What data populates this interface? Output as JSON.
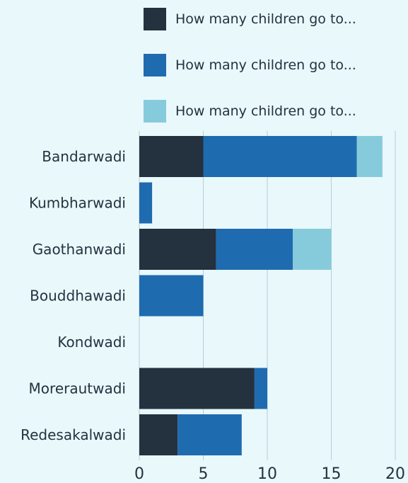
{
  "chart_data": {
    "type": "bar",
    "orientation": "horizontal",
    "stacked": true,
    "categories": [
      "Bandarwadi",
      "Kumbharwadi",
      "Gaothanwadi",
      "Bouddhawadi",
      "Kondwadi",
      "Morerautwadi",
      "Redesakalwadi"
    ],
    "series": [
      {
        "name": "How many children go to...",
        "color": "#24323f",
        "values": [
          5,
          0,
          6,
          0,
          0,
          9,
          3
        ]
      },
      {
        "name": "How many children go to...",
        "color": "#1f6bb0",
        "values": [
          12,
          1,
          6,
          5,
          0,
          1,
          5
        ]
      },
      {
        "name": "How many children go to...",
        "color": "#86cbdb",
        "values": [
          2,
          0,
          3,
          0,
          0,
          0,
          0
        ]
      }
    ],
    "xlim": [
      0,
      20
    ],
    "x_ticks": [
      "0",
      "5",
      "10",
      "15",
      "20"
    ],
    "grid": true,
    "legend_position": "top",
    "title": "",
    "xlabel": "",
    "ylabel": ""
  },
  "colors": {
    "background": "#e9f8fb",
    "grid": "#b8cdd3",
    "text": "#24323f"
  }
}
